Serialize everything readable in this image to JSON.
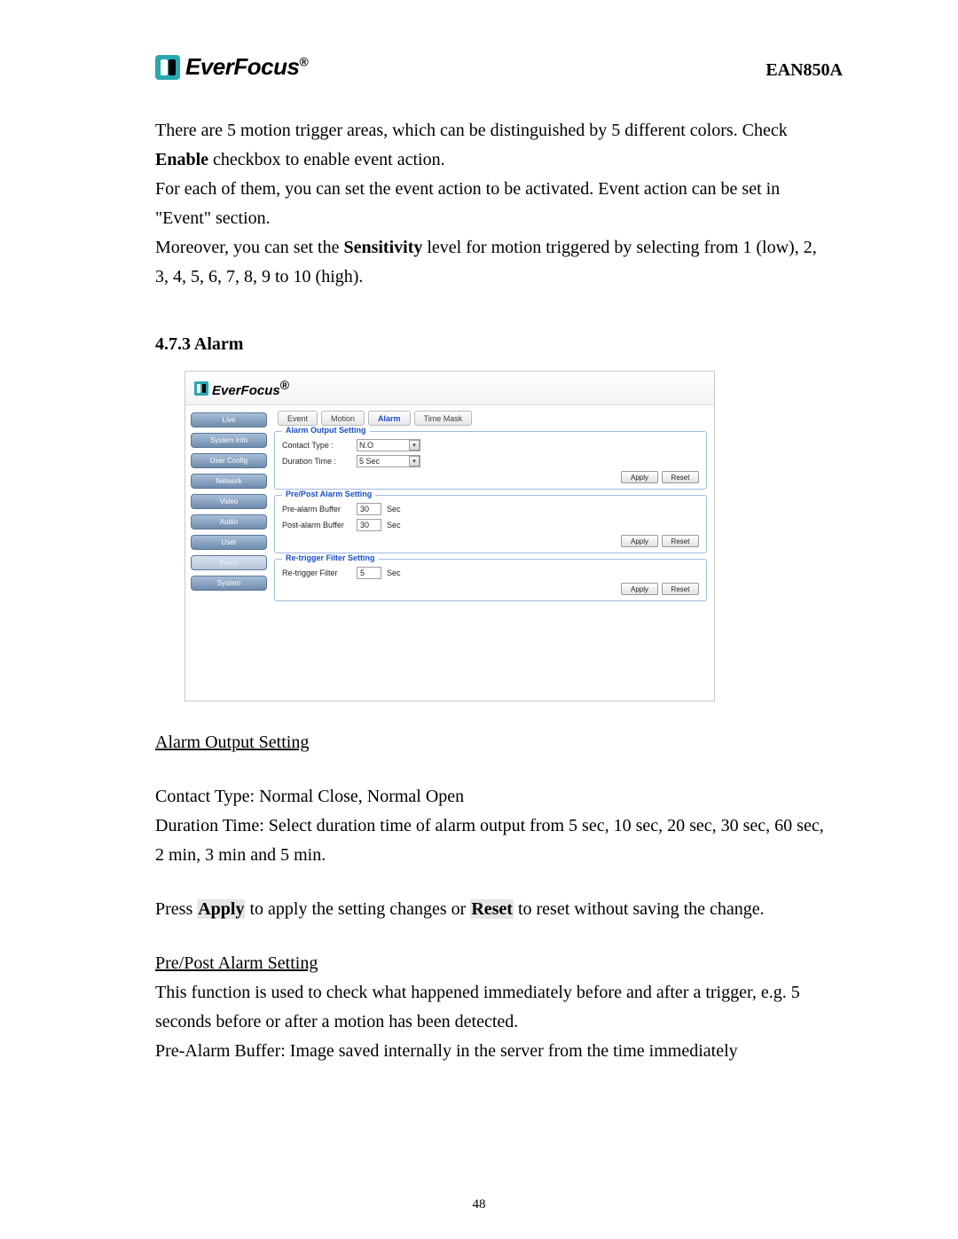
{
  "header": {
    "brand": "EverFocus",
    "reg_mark": "®",
    "model": "EAN850A"
  },
  "intro": {
    "p1a": "There are 5 motion trigger areas, which can be distinguished by 5 different colors. Check ",
    "p1_bold": "Enable",
    "p1b": " checkbox to enable event action.",
    "p2": "For each of them, you can set the event action to be activated. Event action can be set in \"Event\" section.",
    "p3a": "Moreover, you can set the ",
    "p3_bold": "Sensitivity",
    "p3b": " level for motion triggered by selecting from 1 (low), 2, 3, 4, 5, 6, 7, 8, 9 to 10 (high)."
  },
  "section": {
    "num_title": "4.7.3 Alarm"
  },
  "screenshot": {
    "brand": "EverFocus",
    "sidebar": [
      {
        "label": "Live",
        "active": false
      },
      {
        "label": "System Info",
        "active": false
      },
      {
        "label": "User Config",
        "active": false
      },
      {
        "label": "Network",
        "active": false
      },
      {
        "label": "Video",
        "active": false
      },
      {
        "label": "Audio",
        "active": false
      },
      {
        "label": "User",
        "active": false
      },
      {
        "label": "Event",
        "active": true
      },
      {
        "label": "System",
        "active": false
      }
    ],
    "tabs": [
      {
        "label": "Event",
        "active": false
      },
      {
        "label": "Motion",
        "active": false
      },
      {
        "label": "Alarm",
        "active": true
      },
      {
        "label": "Time Mask",
        "active": false
      }
    ],
    "fieldsets": {
      "alarm_output": {
        "legend": "Alarm Output Setting",
        "contact_type_label": "Contact Type :",
        "contact_type_value": "N.O",
        "duration_label": "Duration Time :",
        "duration_value": "5 Sec"
      },
      "prepost": {
        "legend": "Pre/Post Alarm Setting",
        "pre_label": "Pre-alarm Buffer",
        "pre_value": "30",
        "post_label": "Post-alarm Buffer",
        "post_value": "30",
        "unit": "Sec"
      },
      "retrigger": {
        "legend": "Re-trigger Filter Setting",
        "label": "Re-trigger Filter",
        "value": "5",
        "unit": "Sec"
      }
    },
    "buttons": {
      "apply": "Apply",
      "reset": "Reset"
    }
  },
  "after": {
    "h1": "Alarm Output Setting",
    "p1": "Contact Type: Normal Close, Normal Open",
    "p2": "Duration Time: Select duration time of alarm output from 5 sec, 10 sec, 20 sec, 30 sec, 60 sec, 2 min, 3 min and 5 min.",
    "p3a": "Press ",
    "p3_apply": "Apply",
    "p3b": " to apply the setting changes or ",
    "p3_reset": "Reset",
    "p3c": " to reset without saving the change.",
    "h2": "Pre/Post Alarm Setting",
    "p4": "This function is used to check what happened immediately before and after a trigger, e.g. 5 seconds before or after a motion has been detected.",
    "p5": "Pre-Alarm Buffer: Image saved internally in the server from the time immediately"
  },
  "page_number": "48",
  "colors": {
    "brand_teal": "#2aa8b0",
    "link_blue": "#1a4fc9",
    "fieldset_border": "#9fbadf",
    "nav_grad_top": "#a9bfd8",
    "nav_grad_bottom": "#6f8bad"
  }
}
